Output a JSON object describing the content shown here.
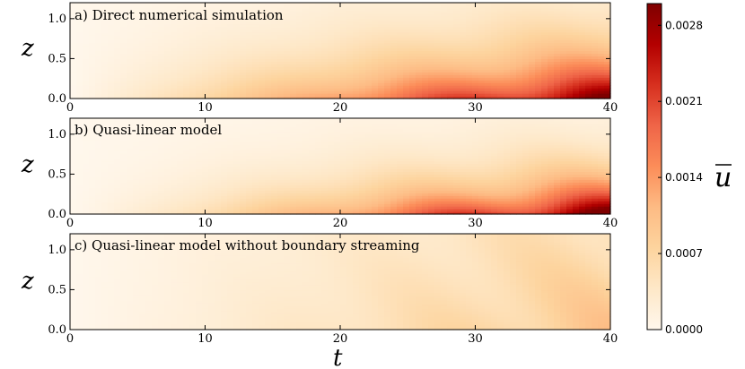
{
  "chart_data": {
    "type": "heatmap",
    "colormap": "OrRd",
    "shared_x": {
      "label": "t",
      "range": [
        0,
        40
      ],
      "ticks": [
        0,
        10,
        20,
        30,
        40
      ],
      "tick_labels": [
        "0",
        "10",
        "20",
        "30",
        "40"
      ]
    },
    "colorbar": {
      "label": "u",
      "overline": true,
      "range": [
        0.0,
        0.003
      ],
      "ticks": [
        0.0,
        0.0007,
        0.0014,
        0.0021,
        0.0028
      ],
      "tick_labels": [
        "0.0000",
        "0.0007",
        "0.0014",
        "0.0021",
        "0.0028"
      ]
    },
    "panels": [
      {
        "id": "a",
        "title": "a) Direct numerical simulation",
        "ylabel": "z",
        "ylim": [
          0.0,
          1.2
        ],
        "y_ticks": [
          0.0,
          0.5,
          1.0
        ],
        "y_tick_labels": [
          "0.0",
          "0.5",
          "1.0"
        ],
        "x_tick_labels": [
          "0",
          "10",
          "20",
          "30",
          "40"
        ],
        "field": {
          "peak": 0.0029,
          "t_growth": 1.0,
          "boundary_layer": 0.6,
          "wave": 0.15
        }
      },
      {
        "id": "b",
        "title": "b) Quasi-linear model",
        "ylabel": "z",
        "ylim": [
          0.0,
          1.2
        ],
        "y_ticks": [
          0.0,
          0.5,
          1.0
        ],
        "y_tick_labels": [
          "0.0",
          "0.5",
          "1.0"
        ],
        "x_tick_labels": [
          "0",
          "10",
          "20",
          "30",
          "40"
        ],
        "field": {
          "peak": 0.003,
          "t_growth": 1.15,
          "boundary_layer": 0.45,
          "wave": 0.2
        }
      },
      {
        "id": "c",
        "title": "c) Quasi-linear model without boundary streaming",
        "ylabel": "z",
        "ylim": [
          0.0,
          1.2
        ],
        "y_ticks": [
          0.0,
          0.5,
          1.0
        ],
        "y_tick_labels": [
          "0.0",
          "0.5",
          "1.0"
        ],
        "x_tick_labels": [
          "0",
          "10",
          "20",
          "30",
          "40"
        ],
        "field": {
          "peak": 0.0009,
          "t_growth": 1.0,
          "boundary_layer": 3.0,
          "wave": 0.25
        }
      }
    ]
  }
}
